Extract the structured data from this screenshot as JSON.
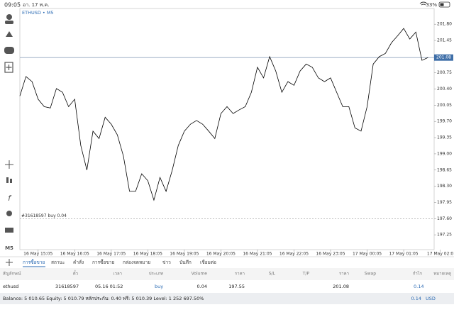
{
  "status_bar": {
    "time": "09:05",
    "date": "อา. 17 พ.ค.",
    "battery": "33%"
  },
  "left_toolbar": {
    "timeframe": "M5"
  },
  "chart_data": {
    "type": "line",
    "title": "ETHUSD • M5",
    "color": "#000000",
    "values": [
      200.25,
      200.67,
      200.56,
      200.18,
      200.02,
      199.99,
      200.41,
      200.33,
      200.02,
      200.18,
      199.18,
      198.65,
      199.49,
      199.33,
      199.79,
      199.64,
      199.41,
      198.95,
      198.19,
      198.19,
      198.57,
      198.42,
      198.0,
      198.49,
      198.19,
      198.64,
      199.18,
      199.49,
      199.64,
      199.72,
      199.64,
      199.49,
      199.33,
      199.87,
      200.02,
      199.87,
      199.95,
      200.02,
      200.33,
      200.87,
      200.64,
      201.1,
      200.79,
      200.33,
      200.56,
      200.48,
      200.79,
      200.94,
      200.87,
      200.64,
      200.56,
      200.64,
      200.33,
      200.02,
      200.02,
      199.56,
      199.49,
      200.02,
      200.94,
      201.1,
      201.17,
      201.4,
      201.55,
      201.71,
      201.48,
      201.63,
      201.02,
      201.08
    ],
    "xlim": [
      0,
      68
    ],
    "xticks": [
      {
        "value": 3,
        "label": "16 May 15:05"
      },
      {
        "value": 9,
        "label": "16 May 16:05"
      },
      {
        "value": 15,
        "label": "16 May 17:05"
      },
      {
        "value": 21,
        "label": "16 May 18:05"
      },
      {
        "value": 27,
        "label": "16 May 19:05"
      },
      {
        "value": 33,
        "label": "16 May 20:05"
      },
      {
        "value": 39,
        "label": "16 May 21:05"
      },
      {
        "value": 45,
        "label": "16 May 22:05"
      },
      {
        "value": 51,
        "label": "16 May 23:05"
      },
      {
        "value": 57,
        "label": "17 May 00:05"
      },
      {
        "value": 63,
        "label": "17 May 01:05"
      },
      {
        "value": 69,
        "label": "17 May 02:0"
      }
    ],
    "ylim": [
      196.93,
      202.14
    ],
    "yticks": [
      {
        "value": 197.25,
        "label": "197.25"
      },
      {
        "value": 197.6,
        "label": "197.60"
      },
      {
        "value": 197.95,
        "label": "197.95"
      },
      {
        "value": 198.3,
        "label": "198.30"
      },
      {
        "value": 198.65,
        "label": "198.65"
      },
      {
        "value": 199.0,
        "label": "199.00"
      },
      {
        "value": 199.35,
        "label": "199.35"
      },
      {
        "value": 199.7,
        "label": "199.70"
      },
      {
        "value": 200.05,
        "label": "200.05"
      },
      {
        "value": 200.4,
        "label": "200.40"
      },
      {
        "value": 200.75,
        "label": "200.75"
      },
      {
        "value": 201.45,
        "label": "201.45"
      },
      {
        "value": 201.8,
        "label": "201.80"
      }
    ],
    "current_price": 201.08,
    "order_line": {
      "label": "#31618597 buy 0.04",
      "value": 197.6
    },
    "grid": false
  },
  "tabs": [
    "การซื้อขาย",
    "สถานะ",
    "คำสั่ง",
    "การซื้อขาย",
    "กล่องจดหมาย",
    "ข่าว",
    "บันทึก",
    "เชื่อมต่อ"
  ],
  "table": {
    "columns": [
      "สัญลักษณ์",
      "ตั๋ว",
      "เวลา",
      "ประเภท",
      "Volume",
      "ราคา",
      "S/L",
      "T/P",
      "ราคา",
      "Swap",
      "กำไร",
      "หมายเหตุ"
    ],
    "row": {
      "symbol": "ethusd",
      "ticket": "31618597",
      "time": "05.16 01:52",
      "type": "buy",
      "volume": "0.04",
      "price": "197.55",
      "current": "201.08",
      "profit": "0.14"
    }
  },
  "footer": {
    "summary": "Balance: 5 010.65 Equity: 5 010.79 หลักประกัน: 0.40 ฟรี: 5 010.39 Level: 1 252 697.50%",
    "profit": "0.14",
    "currency": "USD"
  }
}
